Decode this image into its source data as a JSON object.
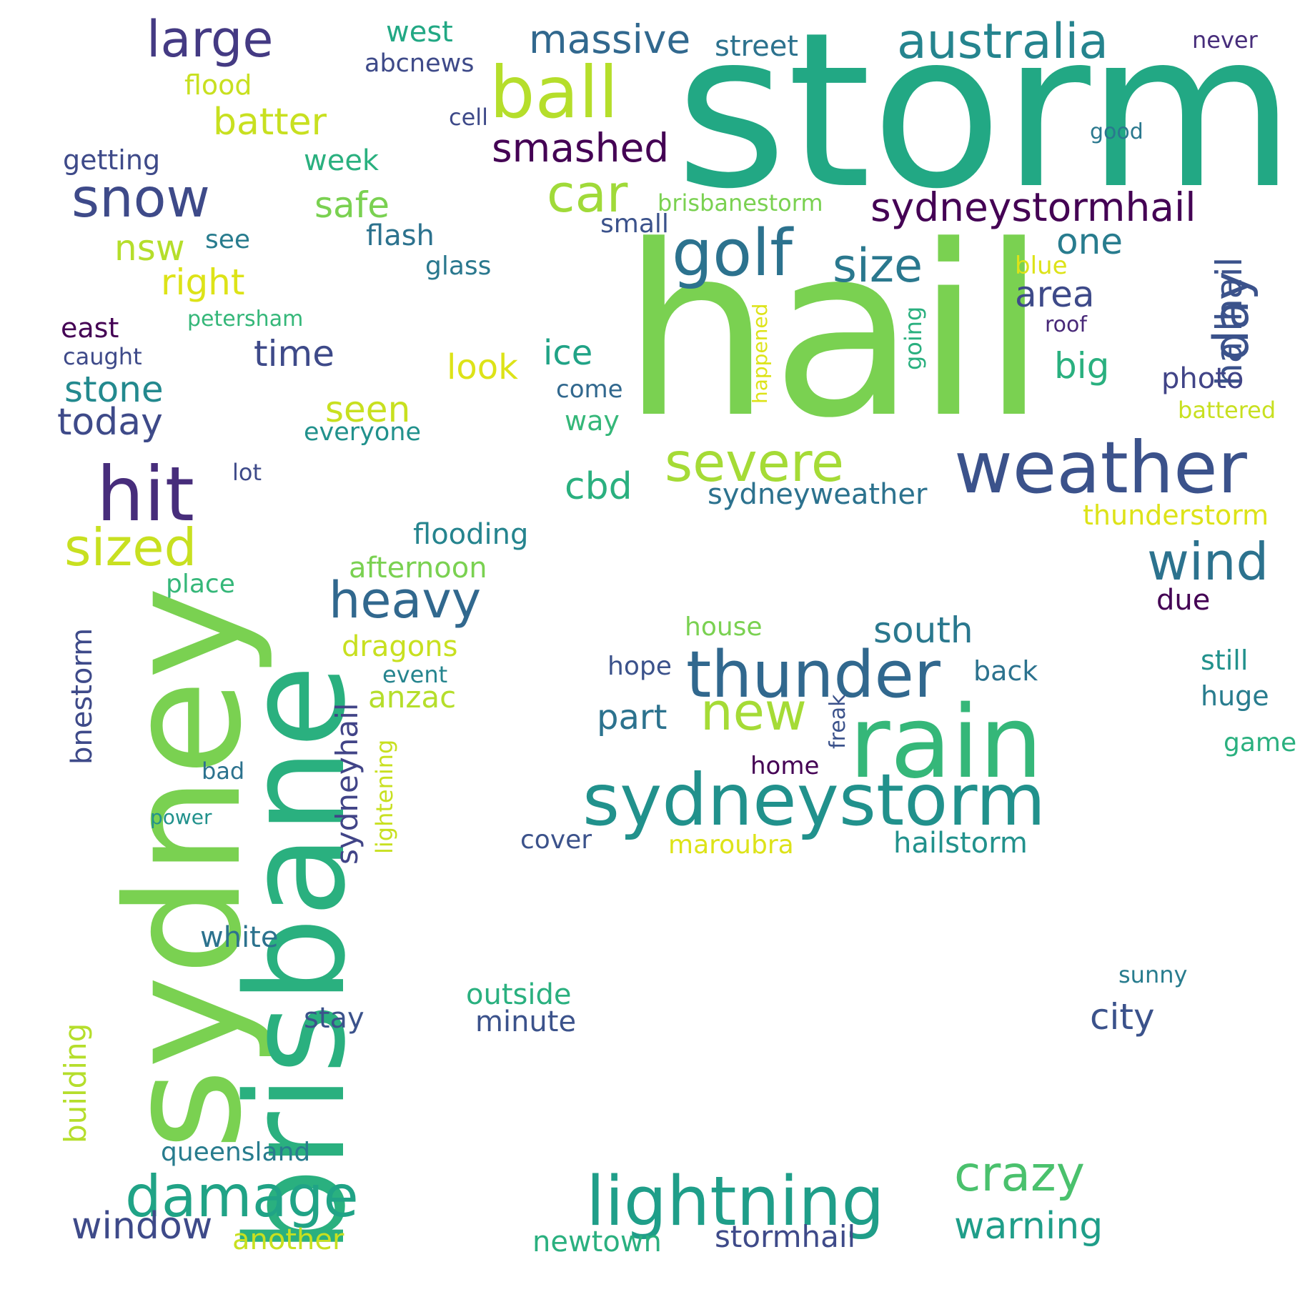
{
  "words": [
    {
      "text": "storm",
      "color": "#22a884",
      "rotate": false
    },
    {
      "text": "hail",
      "color": "#7ad151",
      "rotate": false
    },
    {
      "text": "sydney",
      "color": "#7ad151",
      "rotate": true
    },
    {
      "text": "brisbane",
      "color": "#2ab07f",
      "rotate": true
    },
    {
      "text": "rain",
      "color": "#35b779",
      "rotate": false
    },
    {
      "text": "sydneystorm",
      "color": "#21918c",
      "rotate": false
    },
    {
      "text": "weather",
      "color": "#3b528b",
      "rotate": false
    },
    {
      "text": "lightning",
      "color": "#1f9e89",
      "rotate": false
    },
    {
      "text": "thunder",
      "color": "#31688e",
      "rotate": false
    },
    {
      "text": "ball",
      "color": "#b5de2b",
      "rotate": false
    },
    {
      "text": "golf",
      "color": "#2c728e",
      "rotate": false
    },
    {
      "text": "hit",
      "color": "#472d7b",
      "rotate": false
    },
    {
      "text": "australia",
      "color": "#25848e",
      "rotate": false
    },
    {
      "text": "severe",
      "color": "#a5db36",
      "rotate": false
    },
    {
      "text": "snow",
      "color": "#3e4a89",
      "rotate": false
    },
    {
      "text": "large",
      "color": "#443a83",
      "rotate": false
    },
    {
      "text": "car",
      "color": "#a0da39",
      "rotate": false
    },
    {
      "text": "damage",
      "color": "#20a386",
      "rotate": false
    },
    {
      "text": "sized",
      "color": "#c8e020",
      "rotate": false
    },
    {
      "text": "heavy",
      "color": "#31688e",
      "rotate": false
    },
    {
      "text": "new",
      "color": "#a5db36",
      "rotate": false
    },
    {
      "text": "wind",
      "color": "#2c728e",
      "rotate": false
    },
    {
      "text": "crazy",
      "color": "#4ac16d",
      "rotate": false
    },
    {
      "text": "massive",
      "color": "#31688e",
      "rotate": false
    },
    {
      "text": "smashed",
      "color": "#440154",
      "rotate": false
    },
    {
      "text": "sydneystormhail",
      "color": "#440154",
      "rotate": false
    },
    {
      "text": "size",
      "color": "#2a788e",
      "rotate": false
    },
    {
      "text": "day",
      "color": "#3b528b",
      "rotate": true
    },
    {
      "text": "hailhail",
      "color": "#3b528b",
      "rotate": true
    },
    {
      "text": "window",
      "color": "#3e4a89",
      "rotate": false
    },
    {
      "text": "warning",
      "color": "#1f9e89",
      "rotate": false
    },
    {
      "text": "batter",
      "color": "#c8e020",
      "rotate": false
    },
    {
      "text": "snow",
      "color": "#3e4a89",
      "rotate": false
    },
    {
      "text": "ice",
      "color": "#20a386",
      "rotate": false
    },
    {
      "text": "look",
      "color": "#dde318",
      "rotate": false
    },
    {
      "text": "cbd",
      "color": "#2ab07f",
      "rotate": false
    },
    {
      "text": "seen",
      "color": "#c8e020",
      "rotate": false
    },
    {
      "text": "time",
      "color": "#3e4a89",
      "rotate": false
    },
    {
      "text": "today",
      "color": "#3e4a89",
      "rotate": false
    },
    {
      "text": "stone",
      "color": "#23898e",
      "rotate": false
    },
    {
      "text": "right",
      "color": "#dde318",
      "rotate": false
    },
    {
      "text": "nsw",
      "color": "#b5de2b",
      "rotate": false
    },
    {
      "text": "safe",
      "color": "#7ad151",
      "rotate": false
    },
    {
      "text": "one",
      "color": "#287c8e",
      "rotate": false
    },
    {
      "text": "area",
      "color": "#3e4a89",
      "rotate": false
    },
    {
      "text": "big",
      "color": "#2ab07f",
      "rotate": false
    },
    {
      "text": "photo",
      "color": "#414487",
      "rotate": false
    },
    {
      "text": "south",
      "color": "#2a788e",
      "rotate": false
    },
    {
      "text": "part",
      "color": "#2c728e",
      "rotate": false
    },
    {
      "text": "city",
      "color": "#3b528b",
      "rotate": false
    },
    {
      "text": "hailstorm",
      "color": "#21918c",
      "rotate": false
    },
    {
      "text": "stormhail",
      "color": "#3e4a89",
      "rotate": false
    },
    {
      "text": "newtown",
      "color": "#2ab07f",
      "rotate": false
    },
    {
      "text": "maroubra",
      "color": "#dde318",
      "rotate": false
    },
    {
      "text": "outside",
      "color": "#2ab07f",
      "rotate": false
    },
    {
      "text": "minute",
      "color": "#3b528b",
      "rotate": false
    },
    {
      "text": "queensland",
      "color": "#287c8e",
      "rotate": false
    },
    {
      "text": "another",
      "color": "#c8e020",
      "rotate": false
    },
    {
      "text": "white",
      "color": "#2c728e",
      "rotate": false
    },
    {
      "text": "stay",
      "color": "#3b528b",
      "rotate": false
    },
    {
      "text": "building",
      "color": "#b5de2b",
      "rotate": true
    },
    {
      "text": "bnestorm",
      "color": "#3e4a89",
      "rotate": true
    },
    {
      "text": "sydneyhail",
      "color": "#414487",
      "rotate": true
    },
    {
      "text": "lightening",
      "color": "#c8e020",
      "rotate": true
    },
    {
      "text": "dragons",
      "color": "#c8e020",
      "rotate": false
    },
    {
      "text": "anzac",
      "color": "#b5de2b",
      "rotate": false
    },
    {
      "text": "afternoon",
      "color": "#7ad151",
      "rotate": false
    },
    {
      "text": "flooding",
      "color": "#25848e",
      "rotate": false
    },
    {
      "text": "thunderstorm",
      "color": "#dde318",
      "rotate": false
    },
    {
      "text": "sydneyweather",
      "color": "#2c728e",
      "rotate": false
    },
    {
      "text": "brisbanestorm",
      "color": "#7ad151",
      "rotate": false
    },
    {
      "text": "street",
      "color": "#2c728e",
      "rotate": false
    },
    {
      "text": "never",
      "color": "#472d7b",
      "rotate": false
    },
    {
      "text": "west",
      "color": "#22a884",
      "rotate": false
    },
    {
      "text": "abcnews",
      "color": "#3e4a89",
      "rotate": false
    },
    {
      "text": "flood",
      "color": "#c8e020",
      "rotate": false
    },
    {
      "text": "cell",
      "color": "#3e4a89",
      "rotate": false
    },
    {
      "text": "getting",
      "color": "#3e4a89",
      "rotate": false
    },
    {
      "text": "week",
      "color": "#2ab07f",
      "rotate": false
    },
    {
      "text": "flash",
      "color": "#2c728e",
      "rotate": false
    },
    {
      "text": "glass",
      "color": "#2a788e",
      "rotate": false
    },
    {
      "text": "small",
      "color": "#3b528b",
      "rotate": false
    },
    {
      "text": "good",
      "color": "#2a788e",
      "rotate": false
    },
    {
      "text": "blue",
      "color": "#dde318",
      "rotate": false
    },
    {
      "text": "roof",
      "color": "#482878",
      "rotate": false
    },
    {
      "text": "going",
      "color": "#2ab07f",
      "rotate": true
    },
    {
      "text": "happened",
      "color": "#dde318",
      "rotate": true
    },
    {
      "text": "see",
      "color": "#287c8e",
      "rotate": false
    },
    {
      "text": "petersham",
      "color": "#35b779",
      "rotate": false
    },
    {
      "text": "east",
      "color": "#440154",
      "rotate": false
    },
    {
      "text": "caught",
      "color": "#3e4a89",
      "rotate": false
    },
    {
      "text": "everyone",
      "color": "#21918c",
      "rotate": false
    },
    {
      "text": "come",
      "color": "#31688e",
      "rotate": false
    },
    {
      "text": "way",
      "color": "#35b779",
      "rotate": false
    },
    {
      "text": "battered",
      "color": "#c8e020",
      "rotate": false
    },
    {
      "text": "due",
      "color": "#440154",
      "rotate": false
    },
    {
      "text": "still",
      "color": "#21918c",
      "rotate": false
    },
    {
      "text": "huge",
      "color": "#287c8e",
      "rotate": false
    },
    {
      "text": "game",
      "color": "#2ab07f",
      "rotate": false
    },
    {
      "text": "house",
      "color": "#7ad151",
      "rotate": false
    },
    {
      "text": "hope",
      "color": "#3b528b",
      "rotate": false
    },
    {
      "text": "back",
      "color": "#2c728e",
      "rotate": false
    },
    {
      "text": "home",
      "color": "#440154",
      "rotate": false
    },
    {
      "text": "cover",
      "color": "#3b528b",
      "rotate": false
    },
    {
      "text": "freak",
      "color": "#3b528b",
      "rotate": true
    },
    {
      "text": "lot",
      "color": "#3e4a89",
      "rotate": false
    },
    {
      "text": "place",
      "color": "#35b779",
      "rotate": false
    },
    {
      "text": "event",
      "color": "#25848e",
      "rotate": false
    },
    {
      "text": "bad",
      "color": "#2c728e",
      "rotate": false
    },
    {
      "text": "power",
      "color": "#21918c",
      "rotate": false
    },
    {
      "text": "sunny",
      "color": "#287c8e",
      "rotate": false
    }
  ]
}
